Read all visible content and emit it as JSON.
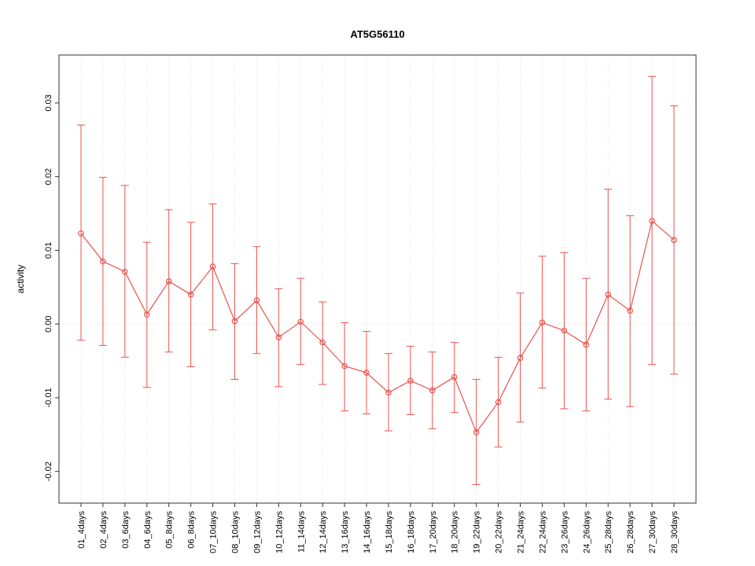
{
  "page": {
    "background": "#ffffff"
  },
  "chart_data": {
    "type": "line",
    "title": "AT5G56110",
    "xlabel": "",
    "ylabel": "activity",
    "ylim": [
      -0.0243,
      0.0365
    ],
    "yticks": [
      -0.02,
      -0.01,
      0.0,
      0.01,
      0.02,
      0.03
    ],
    "grid": true,
    "legend": "none",
    "series_color": "#e8534e",
    "grid_color": "#dcdcdc",
    "axis_color": "#333333",
    "categories": [
      "01_4days",
      "02_4days",
      "03_6days",
      "04_6days",
      "05_8days",
      "06_8days",
      "07_10days",
      "08_10days",
      "09_12days",
      "10_12days",
      "11_14days",
      "12_14days",
      "13_16days",
      "14_16days",
      "15_18days",
      "16_18days",
      "17_20days",
      "18_20days",
      "19_22days",
      "20_22days",
      "21_24days",
      "22_24days",
      "23_26days",
      "24_26days",
      "25_28days",
      "26_28days",
      "27_30days",
      "28_30days"
    ],
    "series": [
      {
        "name": "activity",
        "values": [
          0.0123,
          0.0085,
          0.0071,
          0.0013,
          0.0058,
          0.004,
          0.0078,
          0.0004,
          0.0032,
          -0.0018,
          0.0003,
          -0.0025,
          -0.0057,
          -0.0066,
          -0.0093,
          -0.0077,
          -0.009,
          -0.0072,
          -0.0147,
          -0.0106,
          -0.0046,
          0.0002,
          -0.0009,
          -0.0028,
          0.004,
          0.0018,
          0.014,
          0.0114
        ],
        "upper": [
          0.027,
          0.0199,
          0.0188,
          0.0111,
          0.0155,
          0.0138,
          0.0163,
          0.0082,
          0.0105,
          0.0048,
          0.0062,
          0.003,
          0.0002,
          -0.001,
          -0.004,
          -0.003,
          -0.0038,
          -0.0025,
          -0.0075,
          -0.0045,
          0.0042,
          0.0092,
          0.0097,
          0.0062,
          0.0183,
          0.0147,
          0.0336,
          0.0296
        ],
        "lower": [
          -0.0022,
          -0.0029,
          -0.0045,
          -0.0086,
          -0.0038,
          -0.0058,
          -0.0008,
          -0.0075,
          -0.004,
          -0.0085,
          -0.0055,
          -0.0082,
          -0.0118,
          -0.0122,
          -0.0145,
          -0.0123,
          -0.0142,
          -0.012,
          -0.0218,
          -0.0167,
          -0.0133,
          -0.0087,
          -0.0115,
          -0.0118,
          -0.0102,
          -0.0112,
          -0.0055,
          -0.0068
        ]
      }
    ]
  }
}
